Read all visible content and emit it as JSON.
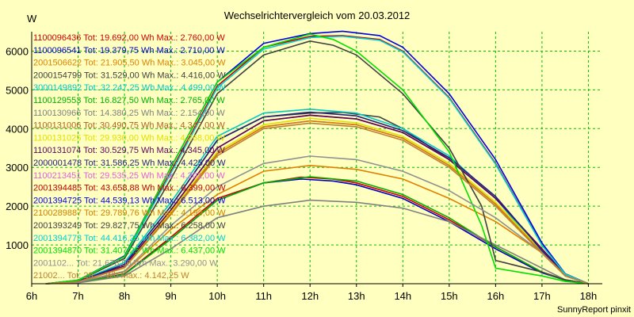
{
  "colors": {
    "background": "#ffffc0",
    "grid": "#00c000",
    "axis": "#000000"
  },
  "chart_data": {
    "type": "line",
    "title": "Wechselrichtervergleich vom 20.03.2012",
    "ylabel": "W",
    "xlabel": "",
    "credit": "SunnyReport pinxit",
    "xlim": [
      6,
      18.3
    ],
    "ylim": [
      0,
      6500
    ],
    "x_ticks": [
      {
        "value": 6,
        "label": "6h"
      },
      {
        "value": 7,
        "label": "7h"
      },
      {
        "value": 8,
        "label": "8h"
      },
      {
        "value": 9,
        "label": "9h"
      },
      {
        "value": 10,
        "label": "10h"
      },
      {
        "value": 11,
        "label": "11h"
      },
      {
        "value": 12,
        "label": "12h"
      },
      {
        "value": 13,
        "label": "13h"
      },
      {
        "value": 14,
        "label": "14h"
      },
      {
        "value": 15,
        "label": "15h"
      },
      {
        "value": 16,
        "label": "16h"
      },
      {
        "value": 17,
        "label": "17h"
      },
      {
        "value": 18,
        "label": "18h"
      }
    ],
    "y_ticks": [
      {
        "value": 1000,
        "label": "1000"
      },
      {
        "value": 2000,
        "label": "2000"
      },
      {
        "value": 3000,
        "label": "3000"
      },
      {
        "value": 4000,
        "label": "4000"
      },
      {
        "value": 5000,
        "label": "5000"
      },
      {
        "value": 6000,
        "label": "6000"
      }
    ],
    "grid": true,
    "legend_position": "top-left",
    "series": [
      {
        "legend": "1100096436 Tot: 19.692,00 Wh Max.: 2.760,00 W",
        "color": "#d00000",
        "x": [
          6.3,
          7,
          8,
          9,
          10,
          11,
          11.8,
          12.5,
          13,
          14,
          15,
          16,
          17,
          17.5,
          18
        ],
        "y": [
          0,
          30,
          250,
          1200,
          2200,
          2600,
          2750,
          2700,
          2600,
          2250,
          1650,
          950,
          300,
          100,
          0
        ]
      },
      {
        "legend": "1100096541 Tot: 19.379,75 Wh Max.: 2.710,00 W",
        "color": "#0000c0",
        "x": [
          6.3,
          7,
          8,
          9,
          10,
          11,
          11.8,
          12.5,
          13,
          14,
          15,
          16,
          17,
          17.5,
          18
        ],
        "y": [
          0,
          30,
          250,
          1150,
          2150,
          2600,
          2700,
          2650,
          2550,
          2200,
          1600,
          900,
          280,
          90,
          0
        ]
      },
      {
        "legend": "2001506622 Tot: 21.905,50 Wh Max.: 3.045,00 W",
        "color": "#e08000",
        "x": [
          6.3,
          7,
          8,
          9,
          10,
          11,
          12,
          13,
          14,
          15,
          16,
          17,
          17.5,
          18
        ],
        "y": [
          0,
          40,
          300,
          1400,
          2300,
          2900,
          3050,
          2950,
          2700,
          2200,
          1600,
          800,
          200,
          0
        ]
      },
      {
        "legend": "2000154799 Tot: 31.529,00 Wh Max.: 4.416,00 W",
        "color": "#404040",
        "x": [
          6.3,
          7,
          8,
          9,
          10,
          11,
          12,
          12.7,
          13.5,
          14,
          15,
          16,
          17,
          17.5,
          18
        ],
        "y": [
          0,
          60,
          500,
          2000,
          3700,
          4300,
          4400,
          4420,
          4300,
          4000,
          3200,
          2200,
          800,
          200,
          0
        ]
      },
      {
        "legend": "3000149892 Tot: 32.247,25 Wh Max.: 4.499,00 W",
        "color": "#00c8c8",
        "x": [
          6.3,
          7,
          8,
          9,
          10,
          11,
          12,
          13,
          14,
          15,
          16,
          17,
          17.5,
          18
        ],
        "y": [
          0,
          60,
          550,
          2100,
          3800,
          4400,
          4500,
          4400,
          4000,
          3300,
          2200,
          800,
          200,
          0
        ]
      },
      {
        "legend": "1100129553 Tot: 16.827,50 Wh Max.: 2.765,00 W",
        "color": "#00b000",
        "x": [
          6.3,
          7,
          8,
          9,
          10,
          11,
          12,
          13,
          14,
          15,
          16,
          17,
          17.5,
          18
        ],
        "y": [
          0,
          30,
          240,
          1150,
          2150,
          2600,
          2760,
          2650,
          2300,
          1700,
          950,
          300,
          80,
          0
        ]
      },
      {
        "legend": "1100130966 Tot: 14.380,25 Wh Max.: 2.154,00 W",
        "color": "#808080",
        "x": [
          6.3,
          7,
          8,
          9,
          10,
          11,
          12,
          13,
          14,
          15,
          16,
          17,
          17.5,
          18
        ],
        "y": [
          0,
          20,
          200,
          900,
          1700,
          2000,
          2154,
          2100,
          1950,
          1600,
          1000,
          400,
          100,
          0
        ]
      },
      {
        "legend": "1100131006 Tot: 30.490,75 Wh Max.: 4.347,00 W",
        "color": "#b06020",
        "x": [
          6.3,
          7,
          8,
          9,
          10,
          11,
          12,
          13,
          14,
          15,
          16,
          17,
          17.5,
          18
        ],
        "y": [
          0,
          50,
          450,
          1900,
          3500,
          4200,
          4347,
          4250,
          3900,
          3200,
          2200,
          900,
          250,
          0
        ]
      },
      {
        "legend": "1100131025 Tot: 29.930,00 Wh Max.: 4.268,00 W",
        "color": "#e0e000",
        "x": [
          6.3,
          7,
          8,
          9,
          10,
          11,
          12,
          13,
          14,
          15,
          16,
          17,
          17.5,
          18
        ],
        "y": [
          0,
          50,
          430,
          1850,
          3400,
          4100,
          4268,
          4150,
          3800,
          3100,
          2100,
          850,
          230,
          0
        ]
      },
      {
        "legend": "1100131074 Tot: 30.529,75 Wh Max.: 4.345,00 W",
        "color": "#600060",
        "x": [
          6.3,
          7,
          8,
          9,
          10,
          11,
          12,
          13,
          14,
          15,
          16,
          17,
          17.5,
          18
        ],
        "y": [
          0,
          50,
          460,
          1900,
          3500,
          4200,
          4345,
          4250,
          3900,
          3200,
          2200,
          900,
          240,
          0
        ]
      },
      {
        "legend": "2000001478 Tot: 31.586,25 Wh Max.: 4.425,00 W",
        "color": "#202080",
        "x": [
          6.3,
          7,
          8,
          9,
          10,
          11,
          12,
          13,
          14,
          15,
          16,
          17,
          17.5,
          18
        ],
        "y": [
          0,
          55,
          500,
          2000,
          3700,
          4300,
          4425,
          4330,
          3950,
          3250,
          2250,
          850,
          220,
          0
        ]
      },
      {
        "legend": "1100213451 Tot: 29.535,25 Wh Max.: 4.201,00 W",
        "color": "#e060e0",
        "x": [
          6.3,
          7,
          8,
          9,
          10,
          11,
          12,
          13,
          14,
          15,
          16,
          17,
          17.5,
          18
        ],
        "y": [
          0,
          50,
          420,
          1800,
          3350,
          4050,
          4201,
          4100,
          3750,
          3050,
          2050,
          800,
          220,
          0
        ]
      },
      {
        "legend": "2001394485 Tot: 43.658,88 Wh Max.: 6.399,00 W",
        "color": "#c00000",
        "x": [
          6.3,
          7,
          8,
          9,
          10,
          11,
          12,
          12.7,
          13.5,
          14,
          15,
          16,
          17,
          17.5,
          18
        ],
        "y": [
          0,
          90,
          700,
          2900,
          5100,
          6100,
          6380,
          6399,
          6300,
          6000,
          4800,
          3100,
          1000,
          250,
          0
        ]
      },
      {
        "legend": "2001394725 Tot: 44.539,13 Wh Max.: 6.513,00 W",
        "color": "#0000e0",
        "x": [
          6.3,
          7,
          8,
          9,
          10,
          11,
          12,
          12.7,
          13.5,
          14,
          15,
          16,
          17,
          17.5,
          18
        ],
        "y": [
          0,
          90,
          720,
          3000,
          5200,
          6200,
          6450,
          6513,
          6400,
          6100,
          4900,
          3200,
          1050,
          260,
          0
        ]
      },
      {
        "legend": "2100289887 Tot: 29.789,76 Wh Max.: 4.199,00 W",
        "color": "#d08000",
        "x": [
          6.3,
          7,
          8,
          9,
          10,
          11,
          12,
          13,
          14,
          15,
          16,
          17,
          17.5,
          18
        ],
        "y": [
          0,
          50,
          420,
          1800,
          3350,
          4050,
          4199,
          4100,
          3750,
          3050,
          2050,
          800,
          220,
          0
        ]
      },
      {
        "legend": "2001393249 Tot: 29.827,75 Wh Max.: 6.258,00 W",
        "color": "#404040",
        "x": [
          6.3,
          7,
          8,
          9,
          10,
          11,
          12,
          12.5,
          13,
          14,
          15,
          15.7,
          16,
          17,
          17.5,
          18
        ],
        "y": [
          0,
          80,
          650,
          2700,
          4900,
          5900,
          6258,
          6150,
          5900,
          4900,
          3500,
          2000,
          600,
          300,
          100,
          0
        ]
      },
      {
        "legend": "2001394773 Tot: 44.416,25 Wh Max.: 6.382,00 W",
        "color": "#00d0d0",
        "x": [
          6.3,
          7,
          8,
          9,
          10,
          11,
          12,
          12.7,
          13.5,
          14,
          15,
          16,
          17,
          17.5,
          18
        ],
        "y": [
          0,
          90,
          700,
          2850,
          5050,
          6050,
          6350,
          6382,
          6280,
          5980,
          4780,
          3080,
          990,
          250,
          0
        ]
      },
      {
        "legend": "2001394870 Tot: 31.407,25 Wh Max.: 6.437,00 W",
        "color": "#00e000",
        "x": [
          6.3,
          7,
          8,
          9,
          10,
          11,
          12,
          12.5,
          13,
          14,
          15,
          15.7,
          16,
          17,
          17.5,
          18
        ],
        "y": [
          0,
          90,
          700,
          3000,
          5200,
          6100,
          6437,
          6300,
          6000,
          5000,
          3400,
          1500,
          400,
          200,
          60,
          0
        ]
      },
      {
        "legend": "2001102... Tot: 21.678,00 Wh Max.: 3.290,00 W",
        "color": "#909090",
        "x": [
          6.3,
          7,
          8,
          9,
          10,
          11,
          12,
          13,
          14,
          15,
          16,
          17,
          17.5,
          18
        ],
        "y": [
          0,
          40,
          320,
          1500,
          2500,
          3100,
          3290,
          3200,
          2900,
          2400,
          1700,
          800,
          200,
          0
        ]
      },
      {
        "legend": "21002... Tot: 29.... Wh Max.: 4.142,25 W",
        "color": "#c08030",
        "x": [
          6.3,
          7,
          8,
          9,
          10,
          11,
          12,
          13,
          14,
          15,
          16,
          17,
          17.5,
          18
        ],
        "y": [
          0,
          50,
          410,
          1780,
          3300,
          4000,
          4142,
          4050,
          3700,
          3000,
          2000,
          780,
          210,
          0
        ]
      }
    ]
  }
}
